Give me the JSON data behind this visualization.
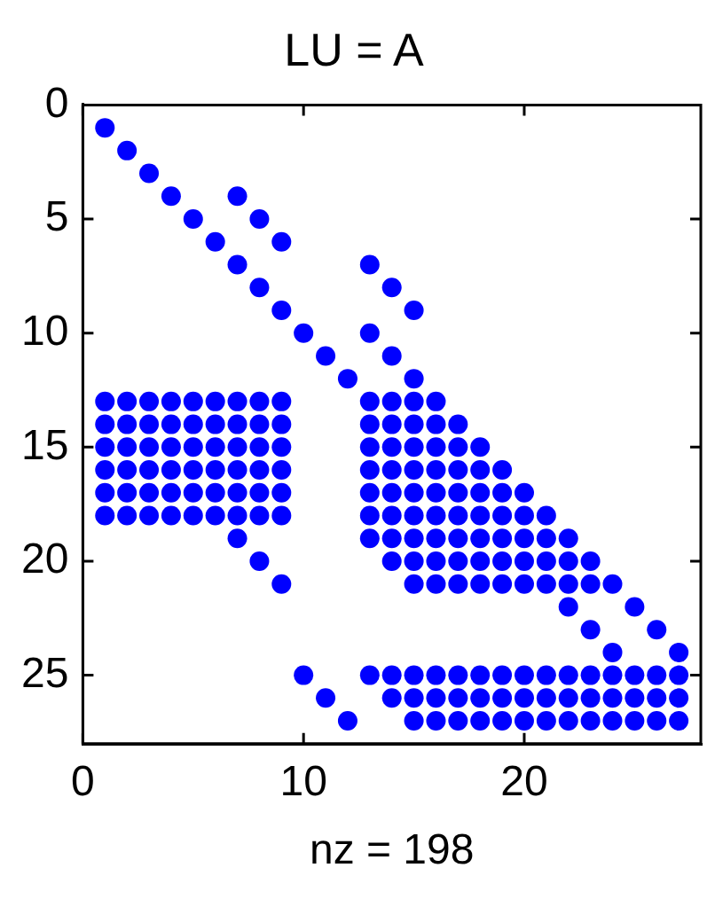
{
  "chart_data": {
    "type": "scatter",
    "title": "LU = A",
    "xlabel": "nz = 198",
    "color": "#0000ff",
    "marker": "circle",
    "xlim": [
      0,
      28
    ],
    "ylim": [
      28,
      0
    ],
    "xticks": [
      0,
      10,
      20
    ],
    "yticks": [
      0,
      5,
      10,
      15,
      20,
      25
    ],
    "x": [
      1,
      2,
      3,
      4,
      7,
      5,
      8,
      6,
      9,
      7,
      13,
      8,
      14,
      9,
      15,
      10,
      13,
      11,
      14,
      12,
      15,
      1,
      2,
      3,
      4,
      5,
      6,
      7,
      8,
      9,
      13,
      14,
      15,
      16,
      1,
      2,
      3,
      4,
      5,
      6,
      7,
      8,
      9,
      13,
      14,
      15,
      16,
      17,
      1,
      2,
      3,
      4,
      5,
      6,
      7,
      8,
      9,
      13,
      14,
      15,
      16,
      17,
      18,
      1,
      2,
      3,
      4,
      5,
      6,
      7,
      8,
      9,
      13,
      14,
      15,
      16,
      17,
      18,
      19,
      1,
      2,
      3,
      4,
      5,
      6,
      7,
      8,
      9,
      13,
      14,
      15,
      16,
      17,
      18,
      19,
      20,
      1,
      2,
      3,
      4,
      5,
      6,
      7,
      8,
      9,
      13,
      14,
      15,
      16,
      17,
      18,
      19,
      20,
      21,
      7,
      13,
      14,
      15,
      16,
      17,
      18,
      19,
      20,
      21,
      22,
      8,
      14,
      15,
      16,
      17,
      18,
      19,
      20,
      21,
      22,
      23,
      9,
      15,
      16,
      17,
      18,
      19,
      20,
      21,
      22,
      23,
      24,
      22,
      25,
      23,
      26,
      24,
      27,
      10,
      13,
      14,
      15,
      16,
      17,
      18,
      19,
      20,
      21,
      22,
      23,
      24,
      25,
      26,
      27,
      11,
      14,
      15,
      16,
      17,
      18,
      19,
      20,
      21,
      22,
      23,
      24,
      25,
      26,
      27,
      12,
      15,
      16,
      17,
      18,
      19,
      20,
      21,
      22,
      23,
      24,
      25,
      26,
      27
    ],
    "values": [
      1,
      2,
      3,
      4,
      4,
      5,
      5,
      6,
      6,
      7,
      7,
      8,
      8,
      9,
      9,
      10,
      10,
      11,
      11,
      12,
      12,
      13,
      13,
      13,
      13,
      13,
      13,
      13,
      13,
      13,
      13,
      13,
      13,
      13,
      14,
      14,
      14,
      14,
      14,
      14,
      14,
      14,
      14,
      14,
      14,
      14,
      14,
      14,
      15,
      15,
      15,
      15,
      15,
      15,
      15,
      15,
      15,
      15,
      15,
      15,
      15,
      15,
      15,
      16,
      16,
      16,
      16,
      16,
      16,
      16,
      16,
      16,
      16,
      16,
      16,
      16,
      16,
      16,
      16,
      17,
      17,
      17,
      17,
      17,
      17,
      17,
      17,
      17,
      17,
      17,
      17,
      17,
      17,
      17,
      17,
      17,
      18,
      18,
      18,
      18,
      18,
      18,
      18,
      18,
      18,
      18,
      18,
      18,
      18,
      18,
      18,
      18,
      18,
      18,
      19,
      19,
      19,
      19,
      19,
      19,
      19,
      19,
      19,
      19,
      19,
      20,
      20,
      20,
      20,
      20,
      20,
      20,
      20,
      20,
      20,
      20,
      21,
      21,
      21,
      21,
      21,
      21,
      21,
      21,
      21,
      21,
      21,
      22,
      22,
      23,
      23,
      24,
      24,
      25,
      25,
      25,
      25,
      25,
      25,
      25,
      25,
      25,
      25,
      25,
      25,
      25,
      25,
      25,
      25,
      26,
      26,
      26,
      26,
      26,
      26,
      26,
      26,
      26,
      26,
      26,
      26,
      26,
      26,
      26,
      27,
      27,
      27,
      27,
      27,
      27,
      27,
      27,
      27,
      27,
      27,
      27,
      27,
      27
    ]
  }
}
